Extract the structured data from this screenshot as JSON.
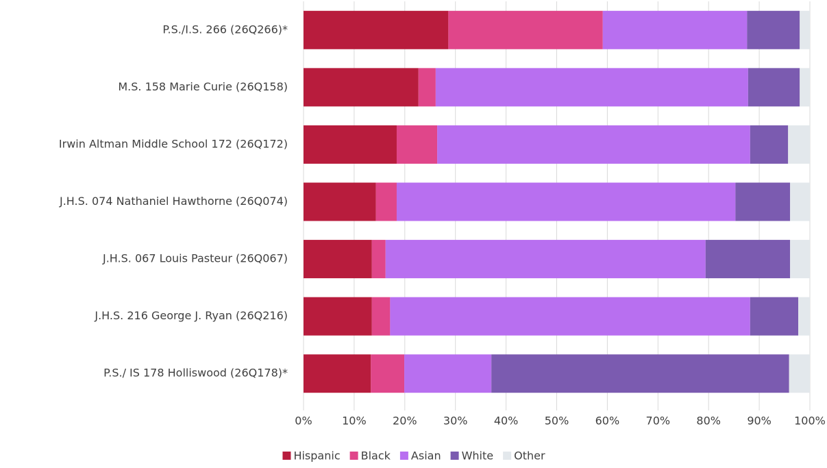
{
  "chart_data": {
    "type": "stacked-bar-horizontal",
    "categories": [
      "P.S./I.S. 266 (26Q266)*",
      "M.S. 158 Marie Curie (26Q158)",
      "Irwin Altman Middle School 172 (26Q172)",
      "J.H.S. 074 Nathaniel Hawthorne (26Q074)",
      "J.H.S. 067 Louis Pasteur (26Q067)",
      "J.H.S. 216 George J. Ryan (26Q216)",
      "P.S./ IS 178 Holliswood (26Q178)*"
    ],
    "series": [
      {
        "name": "Hispanic",
        "color": "#b81c3d",
        "values": [
          28.6,
          22.7,
          18.4,
          14.3,
          13.5,
          13.5,
          13.3
        ]
      },
      {
        "name": "Black",
        "color": "#e0468a",
        "values": [
          30.5,
          3.4,
          8.0,
          4.1,
          2.7,
          3.6,
          6.6
        ]
      },
      {
        "name": "Asian",
        "color": "#b86ff0",
        "values": [
          28.5,
          61.7,
          61.8,
          66.9,
          63.2,
          71.1,
          17.2
        ]
      },
      {
        "name": "White",
        "color": "#7b5bb0",
        "values": [
          10.4,
          10.2,
          7.5,
          10.8,
          16.7,
          9.5,
          58.8
        ]
      },
      {
        "name": "Other",
        "color": "#e3e8ec",
        "values": [
          2.0,
          2.0,
          4.3,
          3.9,
          3.9,
          2.3,
          4.1
        ]
      }
    ],
    "xlim": [
      0,
      100
    ],
    "xticks": [
      {
        "value": 0,
        "label": "0%"
      },
      {
        "value": 10,
        "label": "10%"
      },
      {
        "value": 20,
        "label": "20%"
      },
      {
        "value": 30,
        "label": "30%"
      },
      {
        "value": 40,
        "label": "40%"
      },
      {
        "value": 50,
        "label": "50%"
      },
      {
        "value": 60,
        "label": "60%"
      },
      {
        "value": 70,
        "label": "70%"
      },
      {
        "value": 80,
        "label": "80%"
      },
      {
        "value": 90,
        "label": "90%"
      },
      {
        "value": 100,
        "label": "100%"
      }
    ],
    "grid": true,
    "legend": "bottom"
  }
}
